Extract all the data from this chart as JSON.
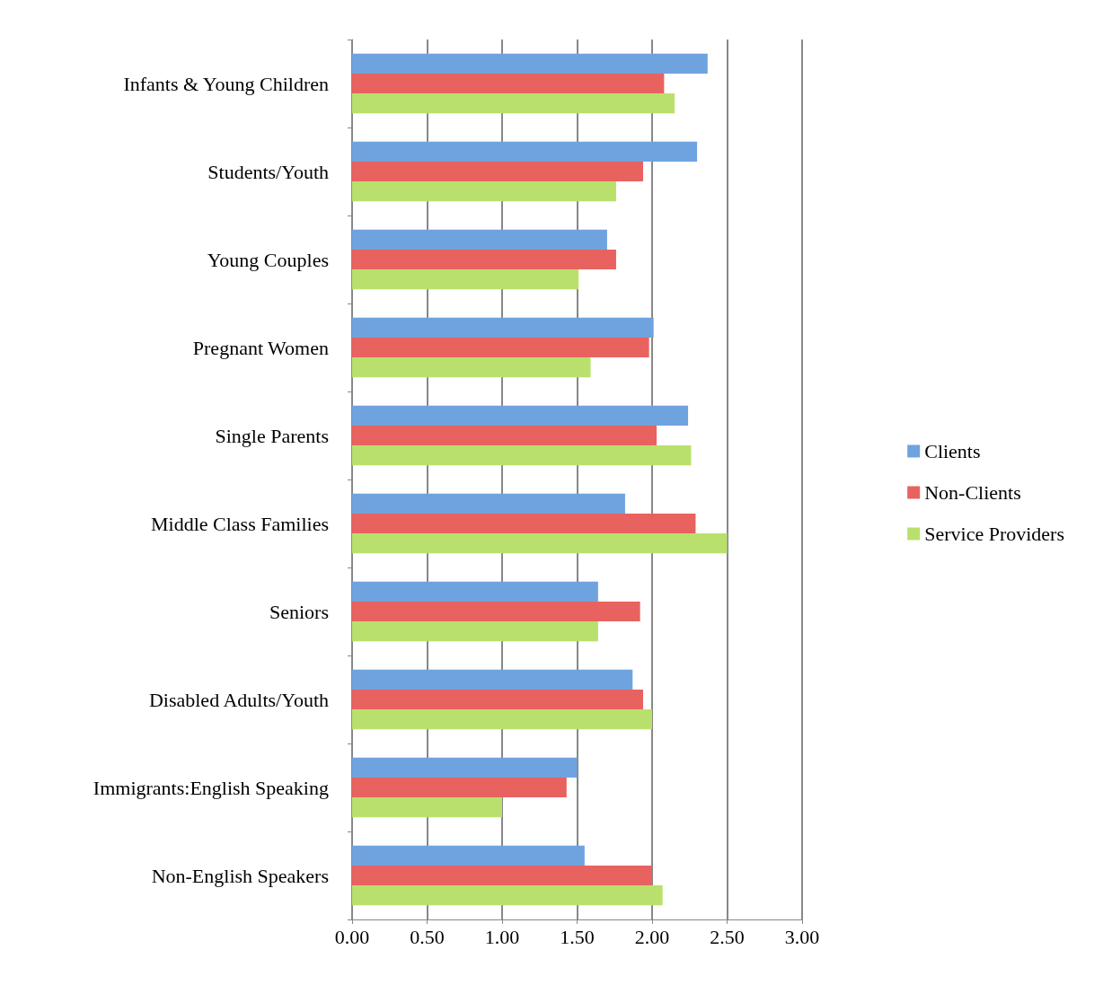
{
  "chart_data": {
    "type": "bar",
    "orientation": "horizontal",
    "categories": [
      "Infants & Young Children",
      "Students/Youth",
      "Young Couples",
      "Pregnant Women",
      "Single Parents",
      "Middle Class Families",
      "Seniors",
      "Disabled Adults/Youth",
      "Immigrants:English Speaking",
      "Non-English Speakers"
    ],
    "series": [
      {
        "name": "Clients",
        "color": "#6fa3e0",
        "values": [
          2.37,
          2.3,
          1.7,
          2.01,
          2.24,
          1.82,
          1.64,
          1.87,
          1.5,
          1.55
        ]
      },
      {
        "name": "Non-Clients",
        "color": "#e8625f",
        "values": [
          2.08,
          1.94,
          1.76,
          1.98,
          2.03,
          2.29,
          1.92,
          1.94,
          1.43,
          2.0
        ]
      },
      {
        "name": "Service Providers",
        "color": "#b9e06c",
        "values": [
          2.15,
          1.76,
          1.51,
          1.59,
          2.26,
          2.5,
          1.64,
          2.0,
          1.0,
          2.07
        ]
      }
    ],
    "xlim": [
      0,
      3
    ],
    "xticks": [
      {
        "value": 0,
        "label": "0.00"
      },
      {
        "value": 0.5,
        "label": "0.50"
      },
      {
        "value": 1,
        "label": "1.00"
      },
      {
        "value": 1.5,
        "label": "1.50"
      },
      {
        "value": 2,
        "label": "2.00"
      },
      {
        "value": 2.5,
        "label": "2.50"
      },
      {
        "value": 3,
        "label": "3.00"
      }
    ],
    "grid": "x",
    "legend": "right"
  }
}
